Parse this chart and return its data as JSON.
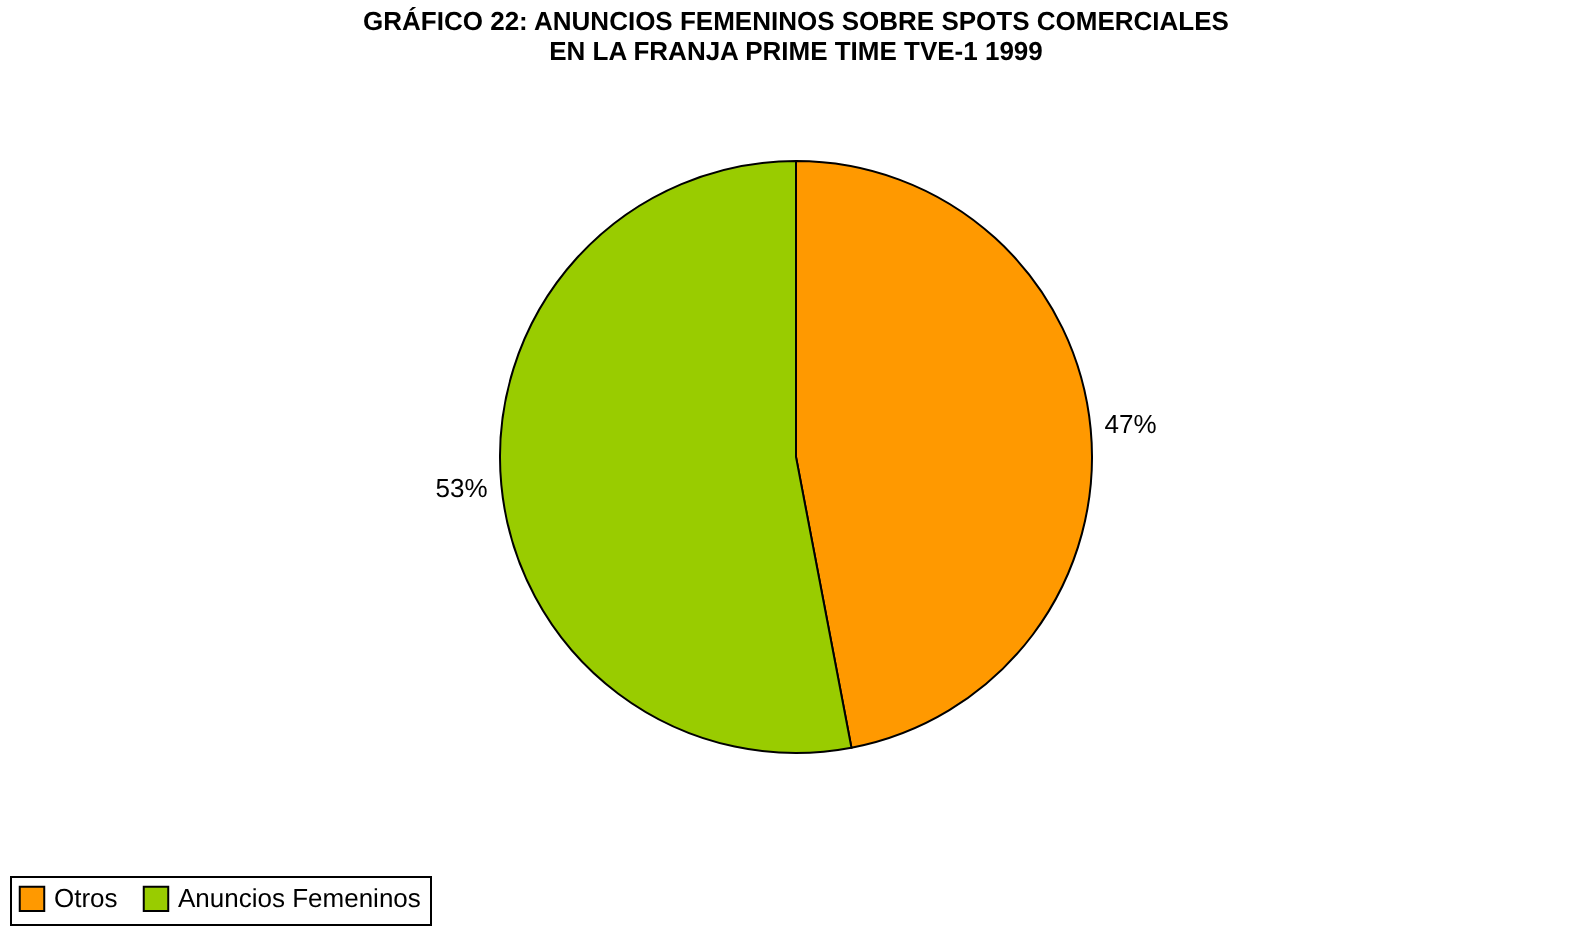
{
  "chart_data": {
    "type": "pie",
    "title": [
      "GRÁFICO 22: ANUNCIOS FEMENINOS SOBRE SPOTS COMERCIALES",
      "EN LA FRANJA PRIME TIME TVE-1 1999"
    ],
    "categories": [
      "Otros",
      "Anuncios Femeninos"
    ],
    "values": [
      47,
      53
    ],
    "colors": [
      "#ff9900",
      "#99cc00"
    ],
    "value_labels": [
      "47%",
      "53%"
    ],
    "legend": "bottom"
  }
}
